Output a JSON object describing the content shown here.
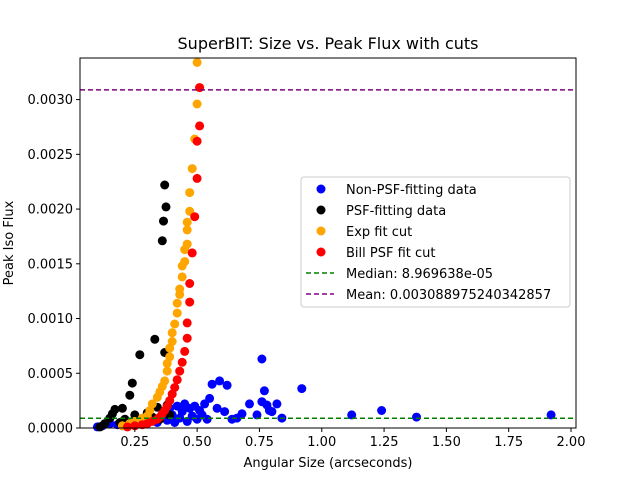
{
  "chart_data": {
    "type": "scatter",
    "title": "SuperBIT: Size vs. Peak Flux with cuts",
    "xlabel": "Angular Size (arcseconds)",
    "ylabel": "Peak Iso Flux",
    "xlim": [
      0.03,
      2.02
    ],
    "ylim": [
      0,
      0.00338
    ],
    "x_ticks": [
      0.25,
      0.5,
      0.75,
      1.0,
      1.25,
      1.5,
      1.75,
      2.0
    ],
    "x_tick_labels": [
      "0.25",
      "0.50",
      "0.75",
      "1.00",
      "1.25",
      "1.50",
      "1.75",
      "2.00"
    ],
    "y_ticks": [
      0,
      0.0005,
      0.001,
      0.0015,
      0.002,
      0.0025,
      0.003
    ],
    "y_tick_labels": [
      "0.0000",
      "0.0005",
      "0.0010",
      "0.0015",
      "0.0020",
      "0.0025",
      "0.0030"
    ],
    "legend_position": "center-right",
    "series": [
      {
        "name": "Non-PSF-fitting data",
        "color": "#0000ff",
        "marker": "circle",
        "points": [
          [
            0.1,
            1e-05
          ],
          [
            0.12,
            2e-05
          ],
          [
            0.15,
            4e-05
          ],
          [
            0.18,
            3e-05
          ],
          [
            0.2,
            2e-05
          ],
          [
            0.23,
            5e-05
          ],
          [
            0.25,
            3e-05
          ],
          [
            0.28,
            6e-05
          ],
          [
            0.3,
            4e-05
          ],
          [
            0.32,
            8e-05
          ],
          [
            0.34,
            5e-05
          ],
          [
            0.36,
            0.0001
          ],
          [
            0.37,
            0.00015
          ],
          [
            0.38,
            7e-05
          ],
          [
            0.39,
            0.00018
          ],
          [
            0.4,
            0.00012
          ],
          [
            0.41,
            5e-05
          ],
          [
            0.42,
            0.0002
          ],
          [
            0.43,
            9e-05
          ],
          [
            0.44,
            0.00015
          ],
          [
            0.45,
            0.00022
          ],
          [
            0.46,
            6e-05
          ],
          [
            0.47,
            0.00018
          ],
          [
            0.48,
            0.00011
          ],
          [
            0.49,
            0.0002
          ],
          [
            0.5,
            8e-05
          ],
          [
            0.51,
            0.00016
          ],
          [
            0.52,
            0.00012
          ],
          [
            0.53,
            0.00022
          ],
          [
            0.54,
            8e-05
          ],
          [
            0.55,
            0.00027
          ],
          [
            0.56,
            0.0004
          ],
          [
            0.58,
            0.00018
          ],
          [
            0.59,
            0.00043
          ],
          [
            0.61,
            0.00015
          ],
          [
            0.62,
            0.00039
          ],
          [
            0.64,
            8e-05
          ],
          [
            0.66,
            9e-05
          ],
          [
            0.68,
            0.00013
          ],
          [
            0.71,
            0.00022
          ],
          [
            0.74,
            0.00012
          ],
          [
            0.76,
            0.00063
          ],
          [
            0.76,
            0.00024
          ],
          [
            0.77,
            0.00034
          ],
          [
            0.78,
            0.00021
          ],
          [
            0.79,
            0.00016
          ],
          [
            0.8,
            0.00015
          ],
          [
            0.82,
            0.00022
          ],
          [
            0.84,
            9e-05
          ],
          [
            0.92,
            0.00036
          ],
          [
            1.12,
            0.00012
          ],
          [
            1.24,
            0.00016
          ],
          [
            1.38,
            0.0001
          ],
          [
            1.92,
            0.00012
          ]
        ]
      },
      {
        "name": "PSF-fitting data",
        "color": "#000000",
        "marker": "circle",
        "points": [
          [
            0.11,
            1e-05
          ],
          [
            0.13,
            4e-05
          ],
          [
            0.15,
            9e-05
          ],
          [
            0.16,
            0.00013
          ],
          [
            0.17,
            0.00017
          ],
          [
            0.19,
            5e-05
          ],
          [
            0.2,
            0.00018
          ],
          [
            0.21,
            8e-05
          ],
          [
            0.23,
            0.0003
          ],
          [
            0.24,
            0.00041
          ],
          [
            0.25,
            0.00012
          ],
          [
            0.27,
            0.00067
          ],
          [
            0.29,
            6e-05
          ],
          [
            0.3,
            0.00014
          ],
          [
            0.32,
            0.0001
          ],
          [
            0.33,
            0.00081
          ],
          [
            0.34,
            0.00019
          ],
          [
            0.35,
            8e-05
          ],
          [
            0.36,
            0.00171
          ],
          [
            0.365,
            0.00189
          ],
          [
            0.37,
            0.00222
          ],
          [
            0.375,
            0.00202
          ],
          [
            0.37,
            0.00069
          ],
          [
            0.38,
            0.00021
          ],
          [
            0.39,
            0.00012
          ]
        ]
      },
      {
        "name": "Exp fit cut",
        "color": "#ffa500",
        "marker": "circle",
        "points": [
          [
            0.2,
            2e-05
          ],
          [
            0.23,
            4e-05
          ],
          [
            0.25,
            6e-05
          ],
          [
            0.28,
            9e-05
          ],
          [
            0.3,
            0.00011
          ],
          [
            0.31,
            0.00016
          ],
          [
            0.32,
            0.00022
          ],
          [
            0.34,
            0.00028
          ],
          [
            0.35,
            0.00033
          ],
          [
            0.36,
            0.00038
          ],
          [
            0.37,
            0.00043
          ],
          [
            0.38,
            0.00052
          ],
          [
            0.38,
            0.00059
          ],
          [
            0.39,
            0.00065
          ],
          [
            0.39,
            0.00073
          ],
          [
            0.4,
            0.00079
          ],
          [
            0.4,
            0.00087
          ],
          [
            0.41,
            0.00095
          ],
          [
            0.42,
            0.00105
          ],
          [
            0.42,
            0.00114
          ],
          [
            0.43,
            0.00122
          ],
          [
            0.43,
            0.00127
          ],
          [
            0.44,
            0.00138
          ],
          [
            0.44,
            0.00148
          ],
          [
            0.45,
            0.00152
          ],
          [
            0.45,
            0.00163
          ],
          [
            0.46,
            0.00168
          ],
          [
            0.46,
            0.00181
          ],
          [
            0.46,
            0.00188
          ],
          [
            0.47,
            0.00198
          ],
          [
            0.47,
            0.00215
          ],
          [
            0.48,
            0.00237
          ],
          [
            0.49,
            0.00264
          ],
          [
            0.5,
            0.00296
          ],
          [
            0.51,
            0.00311
          ],
          [
            0.5,
            0.00334
          ]
        ]
      },
      {
        "name": "Bill PSF fit cut",
        "color": "#ff0000",
        "marker": "circle",
        "points": [
          [
            0.22,
            1e-05
          ],
          [
            0.25,
            2e-05
          ],
          [
            0.28,
            3e-05
          ],
          [
            0.3,
            4e-05
          ],
          [
            0.32,
            6e-05
          ],
          [
            0.34,
            8e-05
          ],
          [
            0.35,
            0.0001
          ],
          [
            0.36,
            0.00013
          ],
          [
            0.37,
            0.00016
          ],
          [
            0.38,
            0.0002
          ],
          [
            0.39,
            0.00025
          ],
          [
            0.4,
            0.00031
          ],
          [
            0.41,
            0.00037
          ],
          [
            0.42,
            0.00044
          ],
          [
            0.43,
            0.00052
          ],
          [
            0.44,
            0.0006
          ],
          [
            0.45,
            0.0007
          ],
          [
            0.46,
            0.00082
          ],
          [
            0.46,
            0.00096
          ],
          [
            0.47,
            0.00115
          ],
          [
            0.47,
            0.00132
          ],
          [
            0.48,
            0.0016
          ],
          [
            0.49,
            0.00193
          ],
          [
            0.5,
            0.00228
          ],
          [
            0.5,
            0.00262
          ],
          [
            0.51,
            0.00276
          ],
          [
            0.51,
            0.00311
          ]
        ]
      }
    ],
    "lines": [
      {
        "name": "Median: 8.969638e-05",
        "color": "#008000",
        "style": "dashed",
        "y": 8.969638e-05
      },
      {
        "name": "Mean: 0.003088975240342857",
        "color": "#800080",
        "style": "dashed",
        "y": 0.003088975240342857
      }
    ]
  }
}
